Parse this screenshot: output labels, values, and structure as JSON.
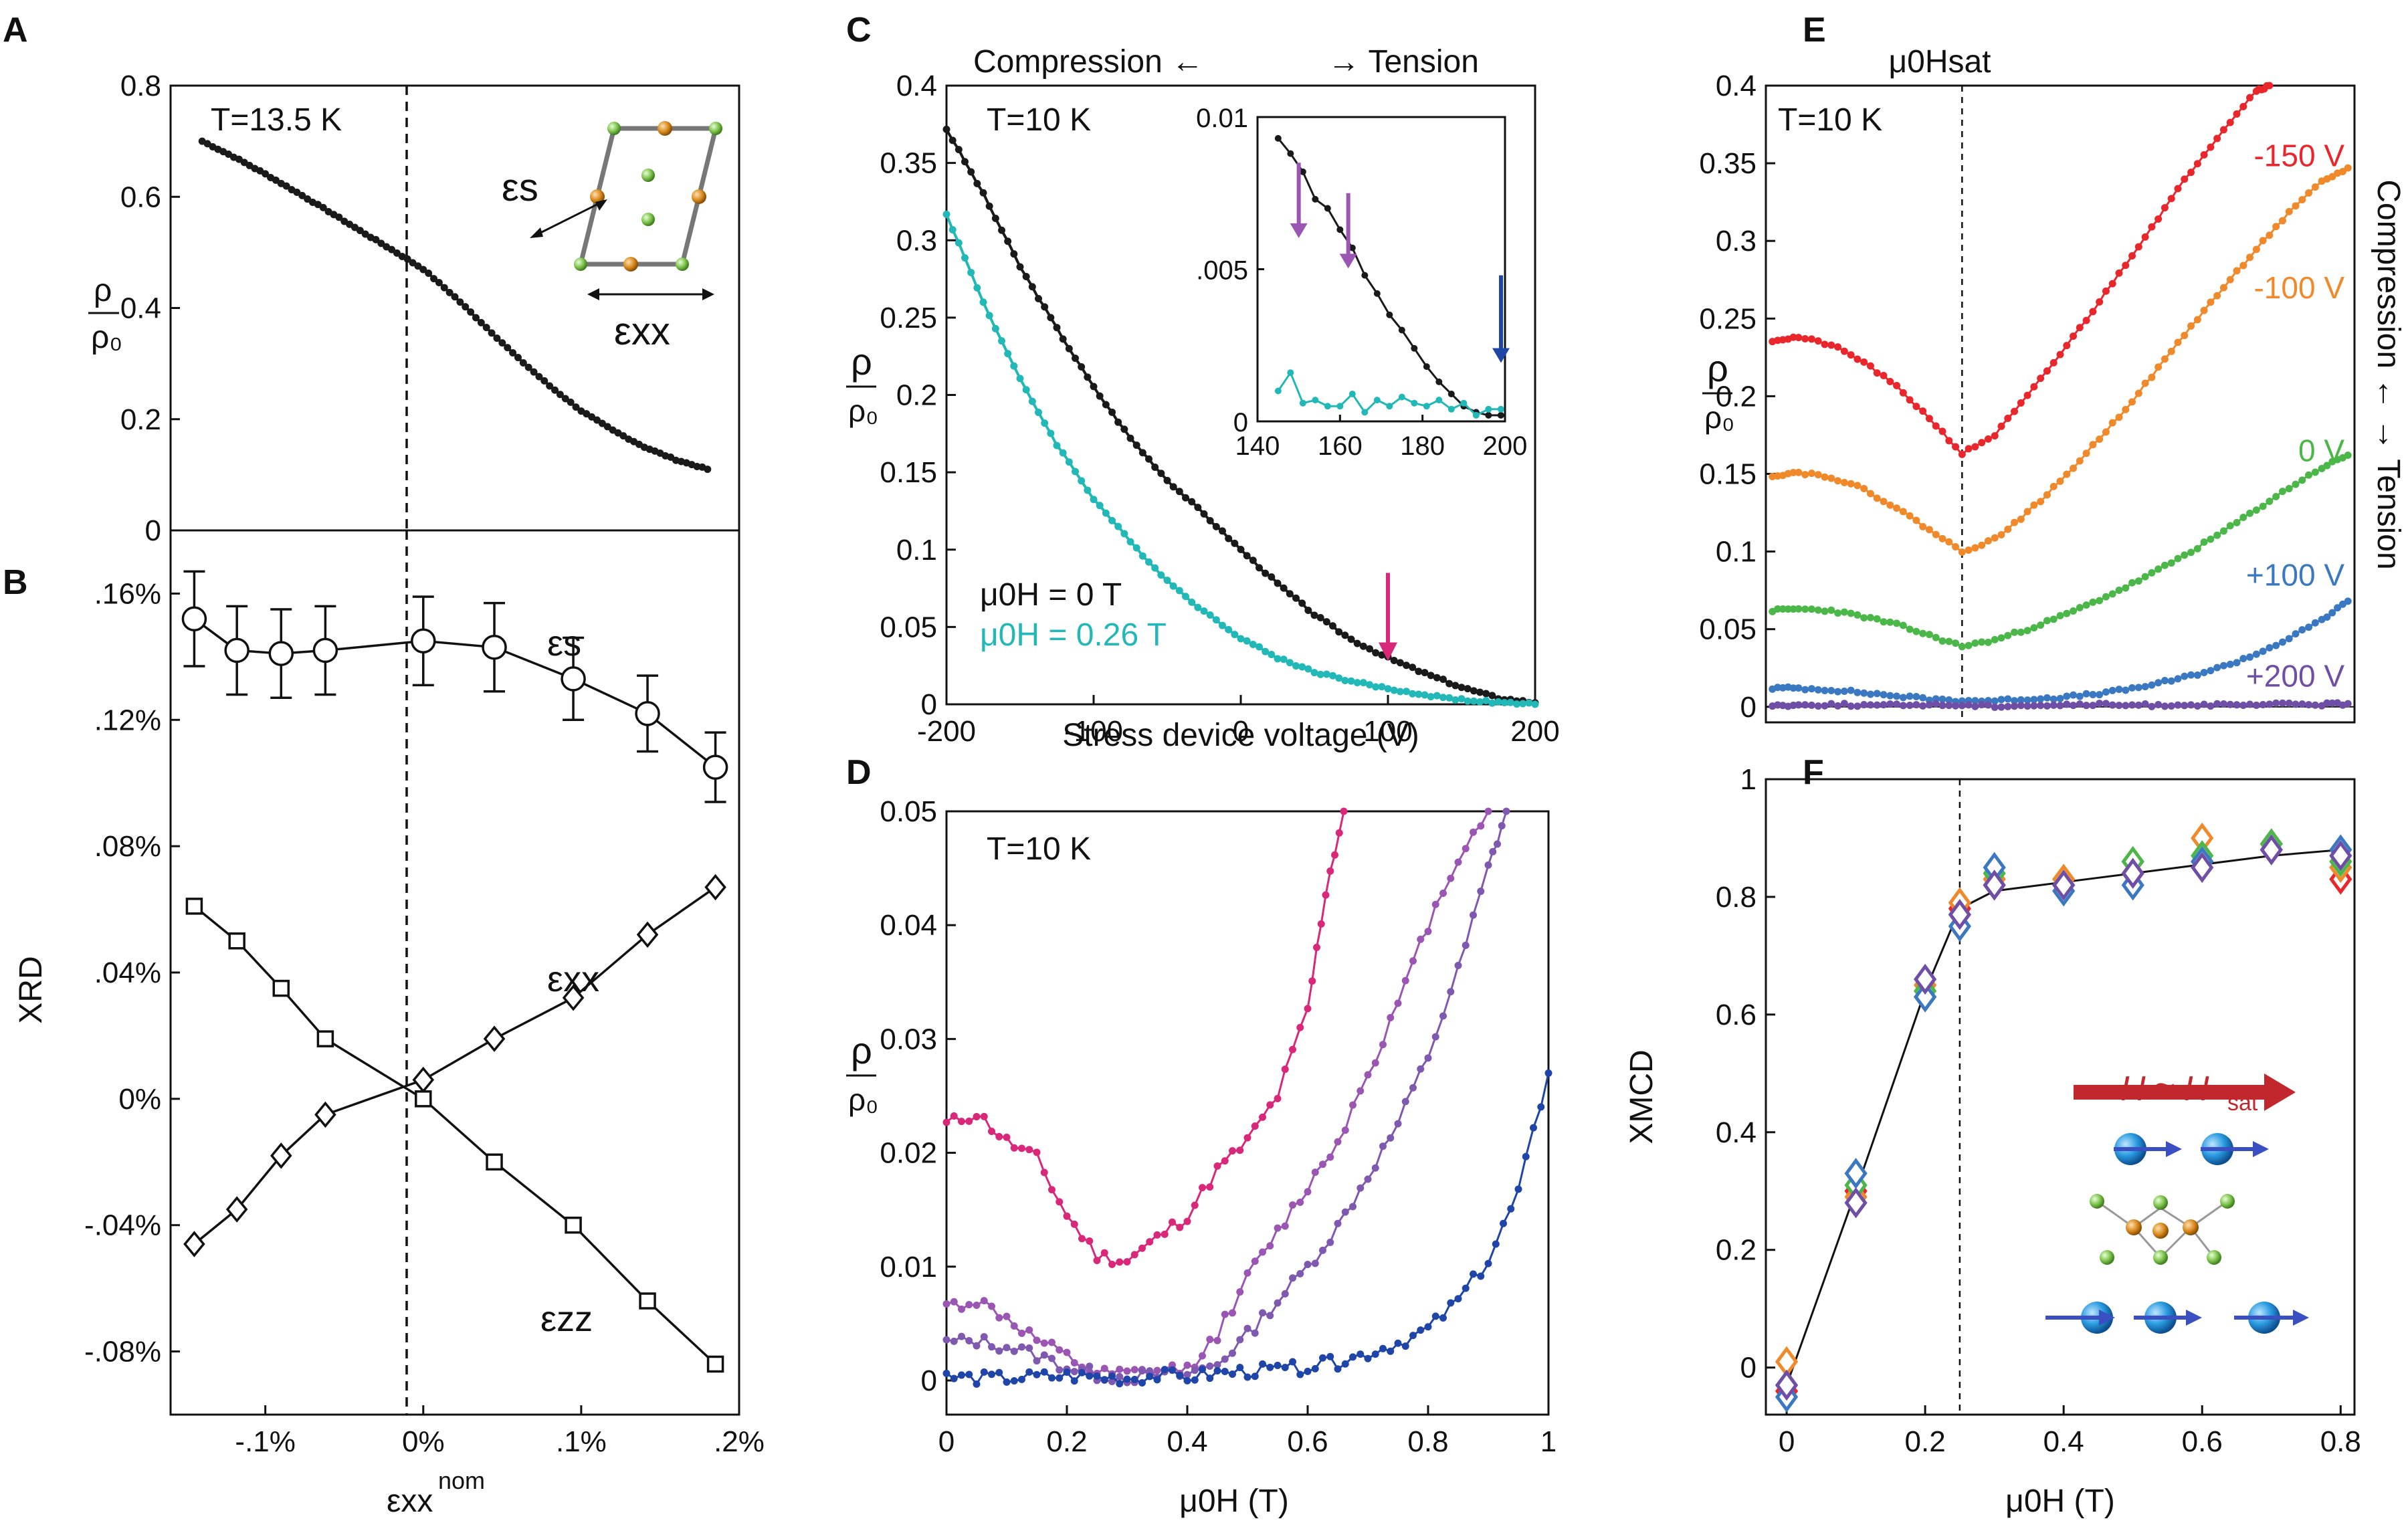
{
  "colors": {
    "black": "#1a1a1a",
    "teal": "#22b8b8",
    "magenta": "#d9277a",
    "purple": "#9a56b2",
    "violet": "#7f58b0",
    "navy": "#1f45a8",
    "red": "#e8262b",
    "orange": "#f0892a",
    "green": "#4bb748",
    "blue": "#3b78c2",
    "dkviolet": "#6f4fa5",
    "arrow_red": "#c1272d"
  },
  "chart_data": [
    {
      "id": "A",
      "panel_label": "A",
      "type": "line",
      "annotation": "T=13.5 K",
      "ylabel_num": "ρ",
      "ylabel_den": "ρ₀",
      "xlim": [
        -0.16,
        0.2
      ],
      "ylim": [
        0,
        0.8
      ],
      "yticks": [
        "0",
        "0.2",
        "0.4",
        "0.6",
        "0.8"
      ],
      "inset_labels": {
        "shear": "εs",
        "xx": "εxx"
      },
      "series": [
        {
          "name": "ρ/ρ0",
          "x": [
            -0.14,
            -0.12,
            -0.1,
            -0.08,
            -0.06,
            -0.04,
            -0.02,
            0.0,
            0.02,
            0.04,
            0.06,
            0.08,
            0.1,
            0.12,
            0.14,
            0.16,
            0.18
          ],
          "y": [
            0.7,
            0.672,
            0.641,
            0.608,
            0.574,
            0.539,
            0.505,
            0.47,
            0.42,
            0.365,
            0.31,
            0.26,
            0.215,
            0.18,
            0.15,
            0.127,
            0.11
          ]
        }
      ]
    },
    {
      "id": "B",
      "panel_label": "B",
      "type": "line",
      "xlabel": "εxx",
      "xlabel_sup": "nom",
      "ylabel": "XRD",
      "xlim": [
        -0.16,
        0.2
      ],
      "ylim": [
        -0.1,
        0.18
      ],
      "xticks": [
        "-.1%",
        "0%",
        ".1%",
        ".2%"
      ],
      "yticks": [
        "-.08%",
        "-.04%",
        "0%",
        ".04%",
        ".08%",
        ".12%",
        ".16%"
      ],
      "series": [
        {
          "name": "εs",
          "marker": "circle",
          "x": [
            -0.145,
            -0.118,
            -0.09,
            -0.062,
            0.0,
            0.045,
            0.095,
            0.142,
            0.185
          ],
          "y": [
            0.152,
            0.142,
            0.141,
            0.142,
            0.145,
            0.143,
            0.133,
            0.122,
            0.105
          ],
          "err": [
            0.015,
            0.014,
            0.014,
            0.014,
            0.014,
            0.014,
            0.013,
            0.012,
            0.011
          ]
        },
        {
          "name": "εxx",
          "marker": "diamond",
          "x": [
            -0.145,
            -0.118,
            -0.09,
            -0.062,
            0.0,
            0.045,
            0.095,
            0.142,
            0.185
          ],
          "y": [
            -0.046,
            -0.035,
            -0.018,
            -0.005,
            0.006,
            0.019,
            0.032,
            0.052,
            0.067
          ]
        },
        {
          "name": "εzz",
          "marker": "square",
          "x": [
            -0.145,
            -0.118,
            -0.09,
            -0.062,
            0.0,
            0.045,
            0.095,
            0.142,
            0.185
          ],
          "y": [
            0.061,
            0.05,
            0.035,
            0.019,
            0.0,
            -0.02,
            -0.04,
            -0.064,
            -0.084
          ]
        }
      ]
    },
    {
      "id": "C",
      "panel_label": "C",
      "type": "line",
      "annotation": "T=10 K",
      "top_label_left": "Compression ←",
      "top_label_right": "→ Tension",
      "xlabel": "Stress device voltage (V)",
      "xlim": [
        -200,
        200
      ],
      "ylim": [
        0,
        0.4
      ],
      "xticks": [
        "-200",
        "-100",
        "0",
        "100",
        "200"
      ],
      "yticks": [
        "0",
        "0.05",
        "0.1",
        "0.15",
        "0.2",
        "0.25",
        "0.3",
        "0.35",
        "0.4"
      ],
      "legend": [
        "μ0H = 0 T",
        "μ0H = 0.26 T"
      ],
      "series": [
        {
          "name": "μ0H = 0 T",
          "x": [
            -200,
            -175,
            -150,
            -125,
            -100,
            -75,
            -50,
            -25,
            0,
            25,
            50,
            75,
            100,
            125,
            150,
            175,
            200
          ],
          "y": [
            0.372,
            0.33,
            0.283,
            0.243,
            0.205,
            0.172,
            0.145,
            0.123,
            0.1,
            0.078,
            0.058,
            0.042,
            0.03,
            0.02,
            0.011,
            0.004,
            0.001
          ]
        },
        {
          "name": "μ0H = 0.26 T",
          "x": [
            -200,
            -175,
            -150,
            -125,
            -100,
            -75,
            -50,
            -25,
            0,
            25,
            50,
            75,
            100,
            125,
            150,
            175,
            200
          ],
          "y": [
            0.317,
            0.26,
            0.21,
            0.168,
            0.133,
            0.105,
            0.08,
            0.06,
            0.043,
            0.03,
            0.021,
            0.015,
            0.01,
            0.006,
            0.003,
            0.001,
            0.0
          ]
        }
      ],
      "inset": {
        "xticks": [
          "140",
          "160",
          "180",
          "200"
        ],
        "yticks": [
          "0",
          ".005",
          "0.01"
        ],
        "xlim": [
          140,
          200
        ],
        "ylim": [
          0,
          0.01
        ],
        "series": [
          {
            "name": "μ0H = 0 T",
            "x": [
              145,
              148,
              151,
              154,
              157,
              160,
              163,
              166,
              169,
              172,
              175,
              178,
              181,
              184,
              187,
              190,
              193,
              196,
              199
            ],
            "y": [
              0.0093,
              0.0088,
              0.0082,
              0.0073,
              0.007,
              0.0063,
              0.0057,
              0.0048,
              0.0042,
              0.0035,
              0.003,
              0.0024,
              0.0018,
              0.0013,
              0.0009,
              0.0005,
              0.0003,
              0.0002,
              0.0002
            ]
          },
          {
            "name": "μ0H = 0.26 T",
            "x": [
              145,
              148,
              151,
              154,
              157,
              160,
              163,
              166,
              169,
              172,
              175,
              178,
              181,
              184,
              187,
              190,
              193,
              196,
              199
            ],
            "y": [
              0.001,
              0.0016,
              0.0006,
              0.0007,
              0.0005,
              0.0005,
              0.0009,
              0.0003,
              0.0007,
              0.0005,
              0.0008,
              0.0006,
              0.0005,
              0.0007,
              0.0004,
              0.0006,
              0.0002,
              0.0004,
              0.0004
            ]
          }
        ],
        "arrows_x": [
          150,
          162,
          200
        ]
      },
      "main_arrow_x": 100
    },
    {
      "id": "D",
      "panel_label": "D",
      "type": "line",
      "annotation": "T=10 K",
      "xlabel": "μ0H (T)",
      "xlim": [
        0,
        1
      ],
      "ylim": [
        -0.003,
        0.05
      ],
      "xticks": [
        "0",
        "0.2",
        "0.4",
        "0.6",
        "0.8",
        "1"
      ],
      "yticks": [
        "0",
        "0.01",
        "0.02",
        "0.03",
        "0.04",
        "0.05"
      ],
      "series": [
        {
          "name": "magenta",
          "x": [
            0,
            0.05,
            0.1,
            0.15,
            0.2,
            0.25,
            0.3,
            0.35,
            0.4,
            0.45,
            0.5,
            0.55,
            0.6,
            0.63,
            0.66
          ],
          "y": [
            0.0225,
            0.0235,
            0.021,
            0.0195,
            0.0145,
            0.011,
            0.0105,
            0.0125,
            0.0145,
            0.0185,
            0.021,
            0.025,
            0.0325,
            0.043,
            0.05
          ]
        },
        {
          "name": "purple",
          "x": [
            0,
            0.05,
            0.1,
            0.15,
            0.2,
            0.25,
            0.3,
            0.35,
            0.4,
            0.45,
            0.5,
            0.55,
            0.6,
            0.65,
            0.7,
            0.75,
            0.8,
            0.85,
            0.9
          ],
          "y": [
            0.0065,
            0.007,
            0.0055,
            0.0035,
            0.002,
            0.0005,
            0.0005,
            0.0008,
            0.001,
            0.004,
            0.009,
            0.013,
            0.017,
            0.021,
            0.027,
            0.033,
            0.04,
            0.046,
            0.05
          ]
        },
        {
          "name": "violet",
          "x": [
            0,
            0.05,
            0.1,
            0.15,
            0.2,
            0.25,
            0.3,
            0.35,
            0.4,
            0.45,
            0.5,
            0.55,
            0.6,
            0.65,
            0.7,
            0.75,
            0.8,
            0.85,
            0.9,
            0.93
          ],
          "y": [
            0.0033,
            0.0035,
            0.003,
            0.0022,
            0.0012,
            0.0005,
            0.0003,
            0.0004,
            0.0005,
            0.0015,
            0.004,
            0.007,
            0.01,
            0.0135,
            0.018,
            0.0225,
            0.0285,
            0.036,
            0.045,
            0.05
          ]
        },
        {
          "name": "navy",
          "x": [
            0,
            0.05,
            0.1,
            0.15,
            0.2,
            0.25,
            0.3,
            0.35,
            0.4,
            0.45,
            0.5,
            0.55,
            0.6,
            0.65,
            0.7,
            0.75,
            0.8,
            0.85,
            0.9,
            0.95,
            1.0
          ],
          "y": [
            0.0003,
            0.0002,
            0.0002,
            0.0003,
            0.0004,
            0.0003,
            0.0002,
            0.0004,
            0.0003,
            0.0006,
            0.0008,
            0.0009,
            0.0012,
            0.0016,
            0.0024,
            0.0033,
            0.0045,
            0.007,
            0.0105,
            0.0165,
            0.027
          ]
        }
      ]
    },
    {
      "id": "E",
      "panel_label": "E",
      "type": "line",
      "annotation": "T=10 K",
      "top_label": "μ0Hsat",
      "right_label": "Compression ← → Tension",
      "xlim": [
        -0.05,
        0.85
      ],
      "ylim": [
        -0.01,
        0.4
      ],
      "yticks": [
        "0",
        "0.05",
        "0.1",
        "0.15",
        "0.2",
        "0.25",
        "0.3",
        "0.35",
        "0.4"
      ],
      "hsat": 0.25,
      "series": [
        {
          "name": "-150 V",
          "x": [
            -0.04,
            0.0,
            0.05,
            0.1,
            0.15,
            0.2,
            0.25,
            0.3,
            0.35,
            0.4,
            0.45,
            0.5,
            0.55,
            0.6,
            0.65,
            0.7,
            0.72
          ],
          "y": [
            0.236,
            0.238,
            0.233,
            0.222,
            0.206,
            0.186,
            0.163,
            0.175,
            0.2,
            0.227,
            0.255,
            0.285,
            0.315,
            0.345,
            0.372,
            0.397,
            0.4
          ]
        },
        {
          "name": "-100 V",
          "x": [
            -0.04,
            0.0,
            0.05,
            0.1,
            0.15,
            0.2,
            0.25,
            0.3,
            0.35,
            0.4,
            0.45,
            0.5,
            0.55,
            0.6,
            0.65,
            0.7,
            0.75,
            0.8,
            0.84
          ],
          "y": [
            0.149,
            0.151,
            0.148,
            0.14,
            0.128,
            0.114,
            0.1,
            0.108,
            0.125,
            0.145,
            0.168,
            0.192,
            0.218,
            0.245,
            0.27,
            0.295,
            0.318,
            0.338,
            0.347
          ]
        },
        {
          "name": "0 V",
          "x": [
            -0.04,
            0.0,
            0.05,
            0.1,
            0.15,
            0.2,
            0.25,
            0.3,
            0.35,
            0.4,
            0.45,
            0.5,
            0.55,
            0.6,
            0.65,
            0.7,
            0.75,
            0.8,
            0.84
          ],
          "y": [
            0.062,
            0.063,
            0.062,
            0.058,
            0.053,
            0.046,
            0.039,
            0.043,
            0.05,
            0.058,
            0.067,
            0.077,
            0.088,
            0.1,
            0.113,
            0.127,
            0.141,
            0.154,
            0.162
          ]
        },
        {
          "name": "+100 V",
          "x": [
            -0.04,
            0.0,
            0.05,
            0.1,
            0.15,
            0.2,
            0.25,
            0.3,
            0.35,
            0.4,
            0.45,
            0.5,
            0.55,
            0.6,
            0.65,
            0.7,
            0.75,
            0.8,
            0.84
          ],
          "y": [
            0.012,
            0.012,
            0.011,
            0.009,
            0.007,
            0.005,
            0.004,
            0.004,
            0.005,
            0.006,
            0.008,
            0.011,
            0.015,
            0.02,
            0.026,
            0.034,
            0.044,
            0.056,
            0.068
          ]
        },
        {
          "name": "+200 V",
          "x": [
            -0.04,
            0.0,
            0.05,
            0.1,
            0.15,
            0.2,
            0.25,
            0.3,
            0.35,
            0.4,
            0.45,
            0.5,
            0.55,
            0.6,
            0.65,
            0.7,
            0.75,
            0.8,
            0.84
          ],
          "y": [
            0.001,
            0.001,
            0.0015,
            0.001,
            0.001,
            0.0015,
            0.001,
            0.0005,
            0.001,
            0.001,
            0.0015,
            0.001,
            0.001,
            0.0015,
            0.001,
            0.001,
            0.002,
            0.0015,
            0.002
          ]
        }
      ]
    },
    {
      "id": "F",
      "panel_label": "F",
      "type": "scatter",
      "xlabel": "μ0H (T)",
      "ylabel": "XMCD",
      "xlim": [
        -0.03,
        0.82
      ],
      "ylim": [
        -0.08,
        1.0
      ],
      "xticks": [
        "0",
        "0.2",
        "0.4",
        "0.6",
        "0.8"
      ],
      "yticks": [
        "0",
        "0.2",
        "0.4",
        "0.6",
        "0.8",
        "1"
      ],
      "hsat": 0.25,
      "field_label": "H ≈ H",
      "field_label_sub": "sat",
      "fit_line": {
        "x": [
          0.0,
          0.1,
          0.2,
          0.25,
          0.3,
          0.4,
          0.5,
          0.6,
          0.7,
          0.8
        ],
        "y": [
          -0.03,
          0.3,
          0.64,
          0.78,
          0.81,
          0.825,
          0.84,
          0.855,
          0.87,
          0.88
        ]
      },
      "series": [
        {
          "name": "-150 V",
          "x": [
            0.0,
            0.1,
            0.2,
            0.25,
            0.3,
            0.4,
            0.5,
            0.6,
            0.7,
            0.8
          ],
          "y": [
            -0.04,
            0.3,
            0.63,
            0.78,
            0.82,
            0.82,
            0.84,
            0.86,
            0.89,
            0.83
          ]
        },
        {
          "name": "-100 V",
          "x": [
            0.0,
            0.1,
            0.2,
            0.25,
            0.3,
            0.4,
            0.5,
            0.6,
            0.7,
            0.8
          ],
          "y": [
            0.01,
            0.29,
            0.65,
            0.79,
            0.83,
            0.83,
            0.86,
            0.9,
            0.88,
            0.85
          ]
        },
        {
          "name": "0 V",
          "x": [
            0.0,
            0.1,
            0.2,
            0.25,
            0.3,
            0.4,
            0.5,
            0.6,
            0.7,
            0.8
          ],
          "y": [
            -0.03,
            0.31,
            0.64,
            0.77,
            0.84,
            0.82,
            0.86,
            0.87,
            0.89,
            0.86
          ]
        },
        {
          "name": "+100 V",
          "x": [
            0.0,
            0.1,
            0.2,
            0.25,
            0.3,
            0.4,
            0.5,
            0.6,
            0.7,
            0.8
          ],
          "y": [
            -0.05,
            0.33,
            0.63,
            0.75,
            0.85,
            0.81,
            0.82,
            0.86,
            0.88,
            0.88
          ]
        },
        {
          "name": "+200 V",
          "x": [
            0.0,
            0.1,
            0.2,
            0.25,
            0.3,
            0.4,
            0.5,
            0.6,
            0.7,
            0.8
          ],
          "y": [
            -0.03,
            0.28,
            0.66,
            0.77,
            0.82,
            0.82,
            0.84,
            0.85,
            0.88,
            0.87
          ]
        }
      ]
    }
  ]
}
